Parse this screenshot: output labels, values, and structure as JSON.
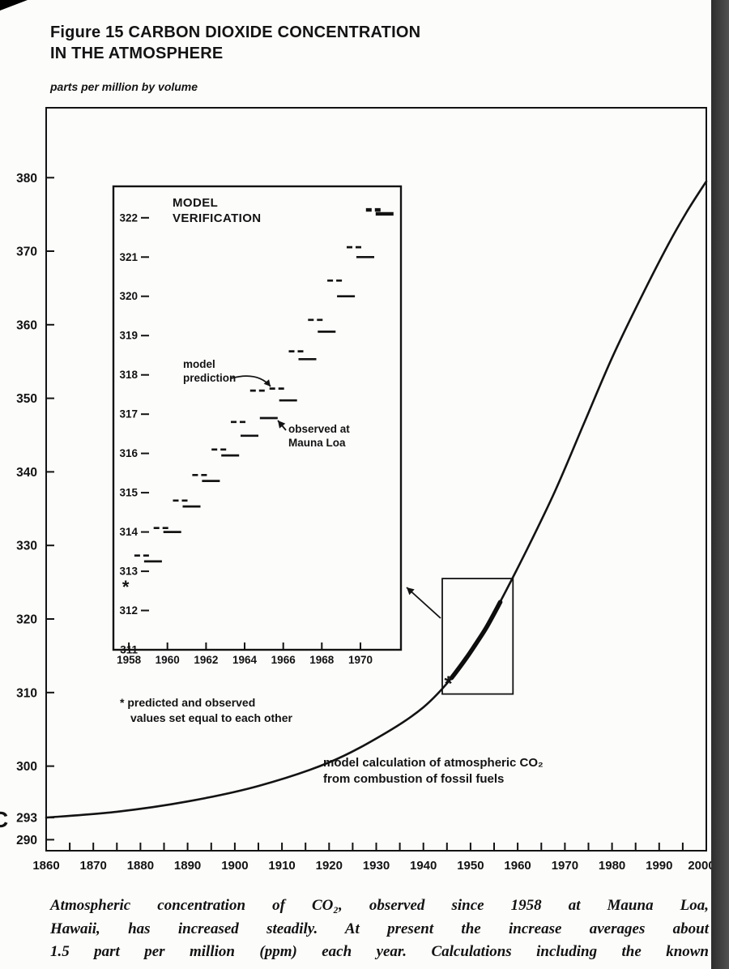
{
  "page": {
    "title_line1": "Figure 15 CARBON DIOXIDE CONCENTRATION",
    "title_line2": "IN THE ATMOSPHERE",
    "y_unit_label": "parts per million by volume",
    "caption_lines": [
      "Atmospheric concentration of CO₂, observed since 1958 at Mauna Loa,",
      "Hawaii, has increased steadily. At present the increase averages about",
      "1.5 part per million (ppm) each year. Calculations including the known"
    ],
    "margin_mark": "C"
  },
  "chart_data": [
    {
      "type": "line",
      "title": "CARBON DIOXIDE CONCENTRATION IN THE ATMOSPHERE",
      "xlabel": "",
      "ylabel": "parts per million by volume",
      "xlim": [
        1860,
        2000
      ],
      "ylim": [
        288.5,
        389.5
      ],
      "x_ticks": [
        1860,
        1870,
        1880,
        1890,
        1900,
        1910,
        1920,
        1930,
        1940,
        1950,
        1960,
        1970,
        1980,
        1990,
        2000
      ],
      "y_ticks": [
        380,
        370,
        360,
        350,
        340,
        330,
        320,
        310,
        300,
        293,
        290
      ],
      "grid": false,
      "legend": "none",
      "model_curve": {
        "name": "model calculation of atmospheric CO₂ from combustion of fossil fuels",
        "x": [
          1860,
          1875,
          1890,
          1905,
          1920,
          1932,
          1940,
          1946,
          1951,
          1956,
          1962,
          1968,
          1974,
          1980,
          1986,
          1992,
          1996,
          2000
        ],
        "y": [
          293.0,
          293.8,
          295.2,
          297.3,
          300.5,
          304.5,
          308.0,
          312.0,
          316.5,
          322.0,
          329.5,
          337.5,
          346.5,
          355.5,
          363.5,
          371.0,
          375.5,
          379.5
        ]
      },
      "observed_segment": {
        "name": "observed CO₂ at Mauna Loa (thick segment, boxed and magnified in inset)",
        "x": [
          1946,
          1949,
          1951,
          1953.5,
          1956.3
        ],
        "y": [
          312.0,
          314.6,
          316.5,
          319.0,
          322.3
        ]
      },
      "asterisk": {
        "year": 1945.3,
        "value": 311.6
      },
      "zoom_box": {
        "year_min": 1944,
        "year_max": 1959,
        "ppm_min": 309.8,
        "ppm_max": 325.5
      },
      "annotation_lines": [
        "model calculation of atmospheric CO₂",
        "from combustion of fossil fuels"
      ]
    },
    {
      "type": "line",
      "title": "MODEL VERIFICATION",
      "title_lines": [
        "MODEL",
        "VERIFICATION"
      ],
      "xlim": [
        1957.2,
        1972.1
      ],
      "ylim": [
        311,
        322.8
      ],
      "x_ticks": [
        1958,
        1960,
        1962,
        1964,
        1966,
        1968,
        1970
      ],
      "y_ticks": [
        322,
        321,
        320,
        319,
        318,
        317,
        316,
        315,
        314,
        313,
        312,
        311
      ],
      "categories": [
        1958,
        1959,
        1960,
        1961,
        1962,
        1963,
        1964,
        1965,
        1966,
        1967,
        1968,
        1969,
        1970,
        1971
      ],
      "series": [
        {
          "name": "model prediction",
          "line_style": "dashed",
          "values": [
            312.65,
            313.4,
            314.1,
            314.8,
            315.45,
            316.1,
            316.8,
            317.6,
            317.65,
            318.6,
            319.4,
            320.4,
            321.25,
            322.2
          ]
        },
        {
          "name": "observed at Mauna Loa",
          "line_style": "solid",
          "values": [
            312.65,
            313.25,
            314.0,
            314.65,
            315.3,
            315.95,
            316.45,
            316.9,
            317.35,
            318.4,
            319.1,
            320.0,
            321.0,
            322.1
          ]
        }
      ],
      "asterisk": {
        "year": 1958,
        "value": 312.65
      },
      "annotations": {
        "prediction_lines": [
          "model",
          "prediction"
        ],
        "observed_lines": [
          "observed at",
          "Mauna Loa"
        ],
        "footnote_lines": [
          "* predicted and observed",
          "values set equal to each other"
        ]
      }
    }
  ]
}
